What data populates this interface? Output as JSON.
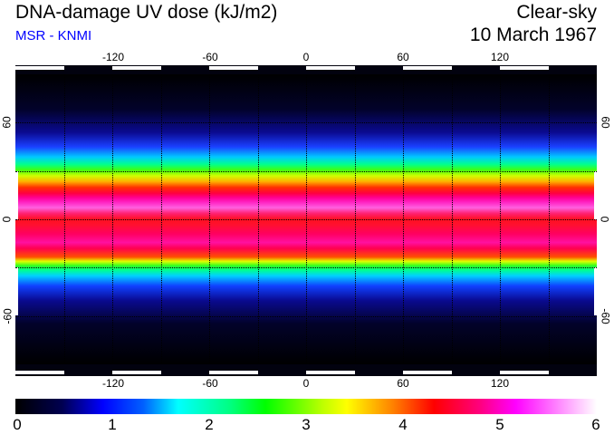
{
  "header": {
    "title": "DNA-damage UV dose (kJ/m2)",
    "subtitle": "MSR - KNMI",
    "sky": "Clear-sky",
    "date": "10 March 1967"
  },
  "map": {
    "lon_labels": [
      "-120",
      "-60",
      "0",
      "60",
      "120"
    ],
    "lat_labels": [
      "60",
      "0",
      "-60"
    ],
    "lon_range": [
      -180,
      180
    ],
    "lat_range": [
      -90,
      90
    ]
  },
  "colorbar": {
    "labels": [
      "0",
      "1",
      "2",
      "3",
      "4",
      "5",
      "6"
    ],
    "min": 0,
    "max": 6,
    "units": "kJ/m2"
  }
}
